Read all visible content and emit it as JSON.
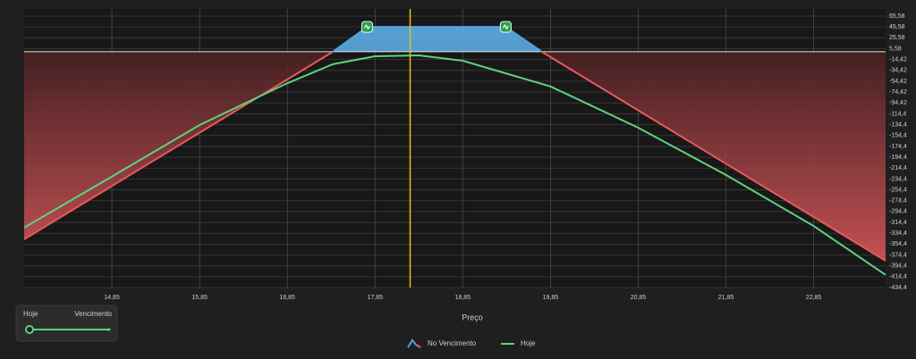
{
  "chart_data": {
    "type": "line",
    "xlabel": "Preço",
    "xlim": [
      13.85,
      23.67
    ],
    "ylim": [
      -434.4,
      65.58
    ],
    "xticks": [
      {
        "value": 14.85,
        "label": "14,85"
      },
      {
        "value": 15.85,
        "label": "15,85"
      },
      {
        "value": 16.85,
        "label": "16,85"
      },
      {
        "value": 17.85,
        "label": "17,85"
      },
      {
        "value": 18.85,
        "label": "18,85"
      },
      {
        "value": 19.85,
        "label": "19,85"
      },
      {
        "value": 20.85,
        "label": "20,85"
      },
      {
        "value": 21.85,
        "label": "21,85"
      },
      {
        "value": 22.85,
        "label": "22,85"
      }
    ],
    "yticks": [
      {
        "value": 65.58,
        "label": "65,58"
      },
      {
        "value": 45.58,
        "label": "45,58"
      },
      {
        "value": 25.58,
        "label": "25,58"
      },
      {
        "value": 5.58,
        "label": "5,58"
      },
      {
        "value": -14.42,
        "label": "-14,42"
      },
      {
        "value": -34.42,
        "label": "-34,42"
      },
      {
        "value": -54.42,
        "label": "-54,42"
      },
      {
        "value": -74.42,
        "label": "-74,42"
      },
      {
        "value": -94.42,
        "label": "-94,42"
      },
      {
        "value": -114.42,
        "label": "-114,4"
      },
      {
        "value": -134.42,
        "label": "-134,4"
      },
      {
        "value": -154.42,
        "label": "-154,4"
      },
      {
        "value": -174.42,
        "label": "-174,4"
      },
      {
        "value": -194.42,
        "label": "-194,4"
      },
      {
        "value": -214.42,
        "label": "-214,4"
      },
      {
        "value": -234.42,
        "label": "-234,4"
      },
      {
        "value": -254.42,
        "label": "-254,4"
      },
      {
        "value": -274.42,
        "label": "-274,4"
      },
      {
        "value": -294.42,
        "label": "-294,4"
      },
      {
        "value": -314.42,
        "label": "-314,4"
      },
      {
        "value": -334.42,
        "label": "-334,4"
      },
      {
        "value": -354.42,
        "label": "-354,4"
      },
      {
        "value": -374.42,
        "label": "-374,4"
      },
      {
        "value": -394.42,
        "label": "-394,4"
      },
      {
        "value": -414.42,
        "label": "-414,4"
      },
      {
        "value": -434.42,
        "label": "-434,4"
      }
    ],
    "grid": true,
    "series": [
      {
        "name": "No Vencimento",
        "color": "#e8595c",
        "profit_color": "#4fa3e0",
        "x": [
          13.85,
          17.37,
          17.76,
          19.34,
          19.75,
          23.67
        ],
        "values": [
          -345.6,
          0,
          45.58,
          45.58,
          0,
          -385
        ]
      },
      {
        "name": "Hoje",
        "color": "#5fd27c",
        "x": [
          13.85,
          14.85,
          15.85,
          16.85,
          17.37,
          17.85,
          18.35,
          18.85,
          19.85,
          20.85,
          21.85,
          22.85,
          23.67
        ],
        "values": [
          -324,
          -230,
          -135,
          -58,
          -23,
          -8.4,
          -6.8,
          -16.7,
          -64,
          -140,
          -227,
          -321,
          -411
        ]
      }
    ],
    "vline": 18.25,
    "vline_color": "#e8b923"
  },
  "slider": {
    "left_label": "Hoje",
    "right_label": "Vencimento"
  }
}
